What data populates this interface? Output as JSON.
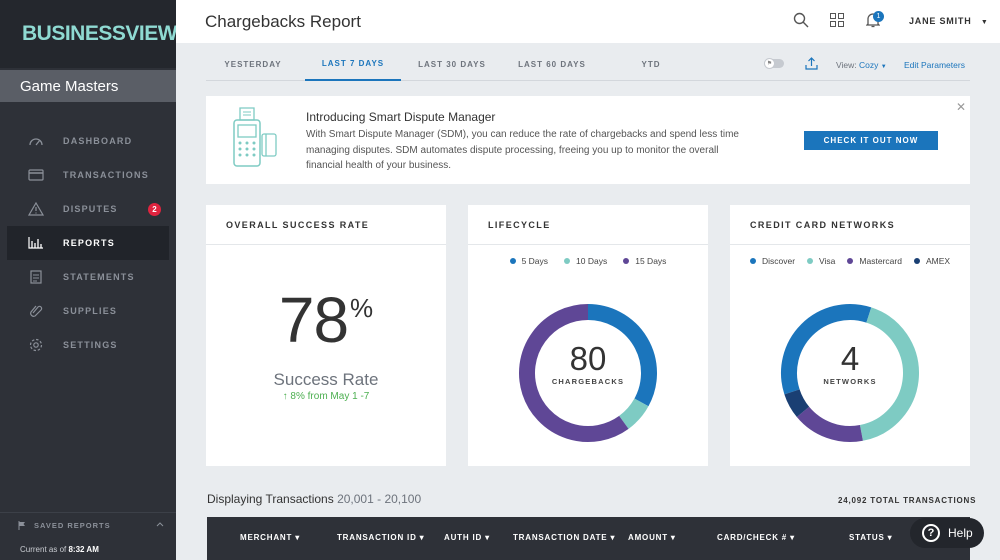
{
  "brand": {
    "name": "BUSINESSVIEW"
  },
  "merchant": "Game Masters",
  "nav": [
    {
      "label": "DASHBOARD",
      "icon": "gauge-icon"
    },
    {
      "label": "TRANSACTIONS",
      "icon": "credit-card-icon"
    },
    {
      "label": "DISPUTES",
      "icon": "warning-icon",
      "badge": "2"
    },
    {
      "label": "REPORTS",
      "icon": "bar-chart-icon",
      "active": true
    },
    {
      "label": "STATEMENTS",
      "icon": "document-icon"
    },
    {
      "label": "SUPPLIES",
      "icon": "paperclip-icon"
    },
    {
      "label": "SETTINGS",
      "icon": "gear-icon"
    }
  ],
  "sidebar_footer": {
    "saved_reports": "SAVED REPORTS",
    "current_as_of": "Current as of",
    "time": "8:32 AM"
  },
  "header": {
    "title": "Chargebacks Report",
    "notifications": "1",
    "user": "JANE SMITH"
  },
  "tabs": [
    "YESTERDAY",
    "LAST 7 DAYS",
    "LAST 30 DAYS",
    "LAST 60 DAYS",
    "YTD"
  ],
  "active_tab": "LAST 7 DAYS",
  "toolbar": {
    "view_label": "View:",
    "view_value": "Cozy",
    "edit_params": "Edit Parameters"
  },
  "banner": {
    "title": "Introducing Smart Dispute Manager",
    "text": "With Smart Dispute Manager (SDM), you can reduce the rate of chargebacks and spend less time managing disputes. SDM automates dispute processing, freeing you up to monitor the overall financial health of your business.",
    "button": "CHECK IT OUT NOW"
  },
  "success": {
    "header": "OVERALL SUCCESS RATE",
    "value": "78",
    "pct": "%",
    "label": "Success Rate",
    "delta": "↑ 8% from May 1 -7"
  },
  "lifecycle": {
    "header": "LIFECYCLE",
    "center_value": "80",
    "center_label": "CHARGEBACKS",
    "legend": [
      {
        "name": "5 Days",
        "color": "#1b75bc"
      },
      {
        "name": "10 Days",
        "color": "#7ecbc3"
      },
      {
        "name": "15 Days",
        "color": "#5f4796"
      }
    ]
  },
  "networks": {
    "header": "CREDIT CARD NETWORKS",
    "center_value": "4",
    "center_label": "NETWORKS",
    "legend": [
      {
        "name": "Discover",
        "color": "#1b75bc"
      },
      {
        "name": "Visa",
        "color": "#7ecbc3"
      },
      {
        "name": "Mastercard",
        "color": "#5f4796"
      },
      {
        "name": "AMEX",
        "color": "#1a3f73"
      }
    ]
  },
  "chart_data": [
    {
      "type": "pie",
      "title": "LIFECYCLE",
      "categories": [
        "5 Days",
        "10 Days",
        "15 Days"
      ],
      "values": [
        33,
        7,
        60
      ]
    },
    {
      "type": "pie",
      "title": "CREDIT CARD NETWORKS",
      "categories": [
        "Discover",
        "Visa",
        "Mastercard",
        "AMEX"
      ],
      "values": [
        35,
        42,
        17,
        6
      ]
    }
  ],
  "transactions": {
    "heading": "Displaying Transactions",
    "range": "20,001 - 20,100",
    "total": "24,092 TOTAL TRANSACTIONS"
  },
  "columns": [
    "MERCHANT",
    "TRANSACTION ID",
    "AUTH ID",
    "TRANSACTION DATE",
    "AMOUNT",
    "CARD/CHECK #",
    "STATUS"
  ],
  "help": "Help",
  "colors": {
    "accent": "#1b75bc",
    "sidebar": "#2e3138",
    "brand": "#8fdad2",
    "alert": "#e0243f",
    "success": "#4caf50"
  }
}
